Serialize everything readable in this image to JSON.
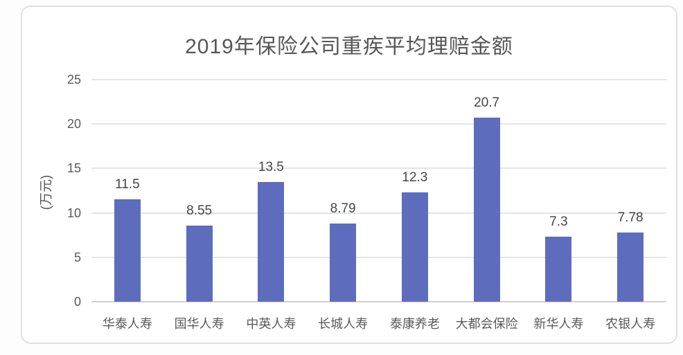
{
  "title": "2019年保险公司重疾平均理赔金额",
  "chart_data": {
    "type": "bar",
    "title": "2019年保险公司重疾平均理赔金额",
    "categories": [
      "华泰人寿",
      "国华人寿",
      "中英人寿",
      "长城人寿",
      "泰康养老",
      "大都会保险",
      "新华人寿",
      "农银人寿"
    ],
    "values": [
      11.5,
      8.55,
      13.5,
      8.79,
      12.3,
      20.7,
      7.3,
      7.78
    ],
    "value_labels": [
      "11.5",
      "8.55",
      "13.5",
      "8.79",
      "12.3",
      "20.7",
      "7.3",
      "7.78"
    ],
    "xlabel": "",
    "ylabel": "(万元)",
    "ylim": [
      0,
      25
    ],
    "yticks": [
      0,
      5,
      10,
      15,
      20,
      25
    ],
    "grid": true,
    "legend": false,
    "data_labels_shown": true
  },
  "colors": {
    "bar": "#5e6cbe",
    "grid": "#e4e4e4",
    "baseline": "#d2d2d2",
    "card_border": "#e0e0e0",
    "card_bg": "#ffffff",
    "title_text": "#565658",
    "axis_text": "#59595c",
    "value_text": "#454547"
  }
}
